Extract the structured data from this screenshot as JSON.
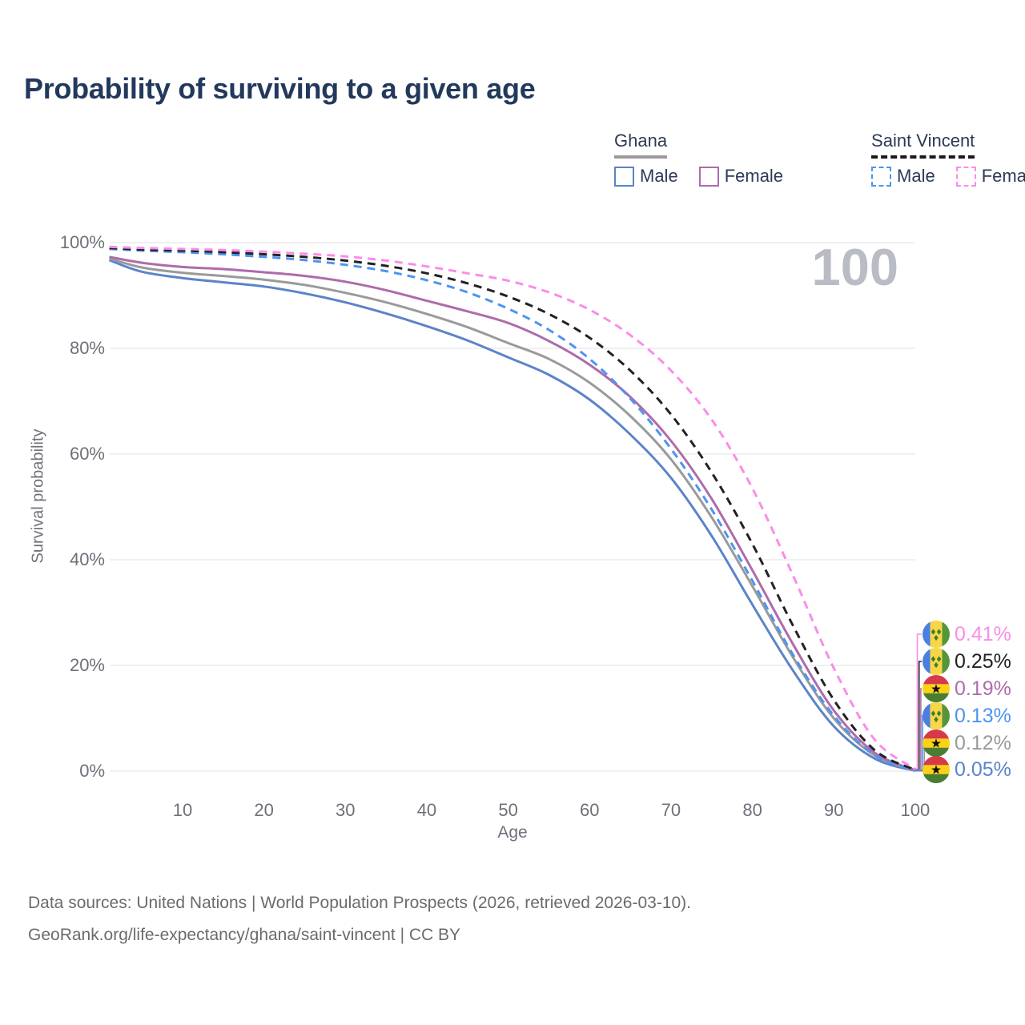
{
  "title": "Probability of surviving to a given age",
  "watermark": "100",
  "legend": {
    "groups": [
      {
        "label": "Ghana",
        "line_style": "solid",
        "underline_color": "#9a9a9a",
        "items": [
          {
            "label": "Male",
            "color": "#5b84c9",
            "dash": "solid"
          },
          {
            "label": "Female",
            "color": "#ae6bab",
            "dash": "solid"
          }
        ]
      },
      {
        "label": "Saint Vincent",
        "line_style": "dashed",
        "underline_color": "#1a1a1a",
        "items": [
          {
            "label": "Male",
            "color": "#4d94f0",
            "dash": "dashed"
          },
          {
            "label": "Female",
            "color": "#fb8ce8",
            "dash": "dashed"
          }
        ]
      }
    ]
  },
  "axes": {
    "y_label": "Survival probability",
    "x_label": "Age",
    "y_ticks": [
      {
        "value": 0,
        "label": "0%"
      },
      {
        "value": 20,
        "label": "20%"
      },
      {
        "value": 40,
        "label": "40%"
      },
      {
        "value": 60,
        "label": "60%"
      },
      {
        "value": 80,
        "label": "80%"
      },
      {
        "value": 100,
        "label": "100%"
      }
    ],
    "x_ticks": [
      10,
      20,
      30,
      40,
      50,
      60,
      70,
      80,
      90,
      100
    ]
  },
  "chart_data": {
    "type": "line",
    "title": "Probability of surviving to a given age",
    "xlabel": "Age",
    "ylabel": "Survival probability",
    "xlim": [
      1,
      100
    ],
    "ylim": [
      0,
      100
    ],
    "grid": "horizontal",
    "x": [
      1,
      5,
      10,
      15,
      20,
      25,
      30,
      35,
      40,
      45,
      50,
      55,
      60,
      65,
      70,
      75,
      80,
      85,
      90,
      95,
      100
    ],
    "series": [
      {
        "name": "Ghana Male",
        "color": "#5b84c9",
        "dash": "solid",
        "end_label": "0.05%",
        "values": [
          96.7,
          94.5,
          93.3,
          92.5,
          91.7,
          90.4,
          88.7,
          86.6,
          84.2,
          81.5,
          78.3,
          75.0,
          70.3,
          63.7,
          55.5,
          44.5,
          31.5,
          19.0,
          8.5,
          2.4,
          0.05
        ]
      },
      {
        "name": "Ghana",
        "color": "#9a9a9a",
        "dash": "solid",
        "end_label": "0.12%",
        "values": [
          97.0,
          95.3,
          94.3,
          93.7,
          93.0,
          92.0,
          90.5,
          88.7,
          86.5,
          84.0,
          81.0,
          78.0,
          73.5,
          67.2,
          59.0,
          48.0,
          35.0,
          21.5,
          10.0,
          3.0,
          0.12
        ]
      },
      {
        "name": "Ghana Female",
        "color": "#ae6bab",
        "dash": "solid",
        "end_label": "0.19%",
        "values": [
          97.3,
          96.2,
          95.4,
          95.0,
          94.4,
          93.7,
          92.6,
          91.0,
          89.0,
          87.0,
          84.8,
          81.4,
          76.9,
          70.8,
          62.5,
          51.5,
          38.0,
          24.0,
          11.5,
          3.5,
          0.19
        ]
      },
      {
        "name": "Saint Vincent Male",
        "color": "#4d94f0",
        "dash": "dashed",
        "end_label": "0.13%",
        "values": [
          98.8,
          98.5,
          98.2,
          97.8,
          97.3,
          96.7,
          95.8,
          94.6,
          92.9,
          90.6,
          87.5,
          83.5,
          78.0,
          70.5,
          61.0,
          49.5,
          36.0,
          22.0,
          10.5,
          3.0,
          0.13
        ]
      },
      {
        "name": "Saint Vincent",
        "color": "#222222",
        "dash": "dashed",
        "end_label": "0.25%",
        "values": [
          99.0,
          98.7,
          98.5,
          98.2,
          97.8,
          97.3,
          96.6,
          95.6,
          94.2,
          92.3,
          89.8,
          86.5,
          82.0,
          75.8,
          67.5,
          56.5,
          43.0,
          27.5,
          13.5,
          4.0,
          0.25
        ]
      },
      {
        "name": "Saint Vincent Female",
        "color": "#fb8ce8",
        "dash": "dashed",
        "end_label": "0.41%",
        "values": [
          99.2,
          99.0,
          98.8,
          98.6,
          98.3,
          97.9,
          97.4,
          96.6,
          95.5,
          94.2,
          92.8,
          90.6,
          87.3,
          82.5,
          75.8,
          66.5,
          53.5,
          37.0,
          19.5,
          6.0,
          0.41
        ]
      }
    ]
  },
  "end_labels": [
    {
      "value": "0.41%",
      "color": "#fb8ce8",
      "flag": "saint-vincent",
      "series": "Saint Vincent Female"
    },
    {
      "value": "0.25%",
      "color": "#222222",
      "flag": "saint-vincent",
      "series": "Saint Vincent"
    },
    {
      "value": "0.19%",
      "color": "#ae6bab",
      "flag": "ghana",
      "series": "Ghana Female"
    },
    {
      "value": "0.13%",
      "color": "#4d94f0",
      "flag": "saint-vincent",
      "series": "Saint Vincent Male"
    },
    {
      "value": "0.12%",
      "color": "#9a9a9a",
      "flag": "ghana",
      "series": "Ghana"
    },
    {
      "value": "0.05%",
      "color": "#5b84c9",
      "flag": "ghana",
      "series": "Ghana Male"
    }
  ],
  "flag_colors": {
    "ghana": {
      "red": "#d63a49",
      "yellow": "#fcd116",
      "green": "#4a7d33",
      "star": "#111111"
    },
    "saint_vincent": {
      "blue": "#4a7fe1",
      "yellow": "#f7d648",
      "green": "#55953c",
      "diamond": "#3e7d2c"
    }
  },
  "grid_color": "#e8e8ea",
  "footer": {
    "line1": "Data sources: United Nations | World Population Prospects (2026, retrieved 2026-03-10).",
    "line2": "GeoRank.org/life-expectancy/ghana/saint-vincent | CC BY"
  }
}
